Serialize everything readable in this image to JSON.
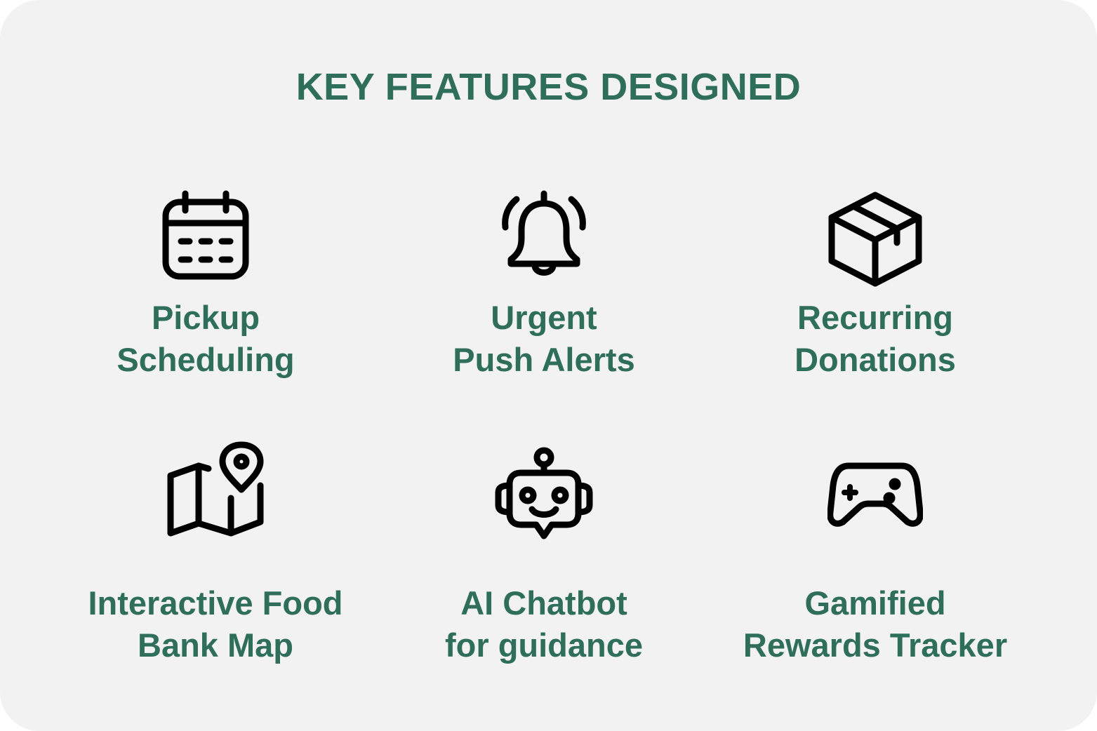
{
  "title": "KEY FEATURES DESIGNED",
  "colors": {
    "background": "#f2f2f2",
    "text": "#2e6e5a",
    "icon": "#000000"
  },
  "features": [
    {
      "icon": "calendar-icon",
      "line1": "Pickup",
      "line2": "Scheduling"
    },
    {
      "icon": "bell-icon",
      "line1": "Urgent",
      "line2": "Push Alerts"
    },
    {
      "icon": "box-icon",
      "line1": "Recurring",
      "line2": "Donations"
    },
    {
      "icon": "map-pin-icon",
      "line1": "Interactive Food",
      "line2": "Bank Map"
    },
    {
      "icon": "robot-icon",
      "line1": "AI Chatbot",
      "line2": "for guidance"
    },
    {
      "icon": "gamepad-icon",
      "line1": "Gamified",
      "line2": "Rewards Tracker"
    }
  ]
}
